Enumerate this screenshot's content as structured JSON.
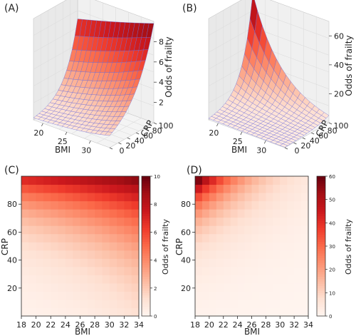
{
  "chart_data": [
    {
      "panel_label": "(A)",
      "type": "surface3d",
      "x_label": "BMI",
      "y_label": "CRP",
      "z_label": "Odds of frailty",
      "x_ticks": [
        "20",
        "25",
        "30"
      ],
      "y_ticks": [
        "0",
        "20",
        "40",
        "60",
        "80",
        "100"
      ],
      "z_ticks": [
        "2",
        "4",
        "6",
        "8"
      ],
      "xlim": [
        18,
        34
      ],
      "ylim": [
        0,
        100
      ],
      "zlim": [
        0,
        10
      ],
      "surface": {
        "z_at_bmi18_crp0": 0.2,
        "z_at_bmi34_crp0": 1.2,
        "z_at_bmi18_crp100": 7.5,
        "z_at_bmi34_crp100": 9.8
      },
      "colormap": "Reds",
      "wire_color": "#6a6ad8"
    },
    {
      "panel_label": "(B)",
      "type": "surface3d",
      "x_label": "BMI",
      "y_label": "CRP",
      "z_label": "Odds of frailty",
      "x_ticks": [
        "20",
        "25",
        "30"
      ],
      "y_ticks": [
        "0",
        "20",
        "40",
        "60",
        "80",
        "100"
      ],
      "z_ticks": [
        "20",
        "40",
        "60"
      ],
      "xlim": [
        18,
        34
      ],
      "ylim": [
        0,
        100
      ],
      "zlim": [
        0,
        70
      ],
      "surface": {
        "z_at_bmi18_crp0": 1.0,
        "z_at_bmi34_crp0": 0.3,
        "z_at_bmi18_crp100": 70,
        "z_at_bmi34_crp100": 5
      },
      "colormap": "Reds",
      "wire_color": "#6a6ad8"
    },
    {
      "panel_label": "(C)",
      "type": "heatmap",
      "x_label": "BMI",
      "y_label": "CRP",
      "colorbar_label": "Odds of frailty",
      "x_ticks": [
        "18",
        "20",
        "22",
        "24",
        "26",
        "28",
        "30",
        "32",
        "34"
      ],
      "y_ticks": [
        "20",
        "40",
        "60",
        "80"
      ],
      "colorbar_ticks": [
        "0",
        "2",
        "4",
        "6",
        "8",
        "10"
      ],
      "xlim": [
        18,
        34
      ],
      "ylim": [
        0,
        100
      ],
      "clim": [
        0,
        10
      ],
      "surface": {
        "z_at_bmi18_crp0": 0.2,
        "z_at_bmi34_crp0": 1.2,
        "z_at_bmi18_crp100": 7.5,
        "z_at_bmi34_crp100": 9.8
      },
      "colormap": "Reds"
    },
    {
      "panel_label": "(D)",
      "type": "heatmap",
      "x_label": "BMI",
      "y_label": "CRP",
      "colorbar_label": "Odds of frailty",
      "x_ticks": [
        "18",
        "20",
        "22",
        "24",
        "26",
        "28",
        "30",
        "32",
        "34"
      ],
      "y_ticks": [
        "20",
        "40",
        "60",
        "80"
      ],
      "colorbar_ticks": [
        "0",
        "10",
        "20",
        "30",
        "40",
        "50",
        "60"
      ],
      "xlim": [
        18,
        34
      ],
      "ylim": [
        0,
        100
      ],
      "clim": [
        0,
        60
      ],
      "surface": {
        "z_at_bmi18_crp0": 1.0,
        "z_at_bmi34_crp0": 0.3,
        "z_at_bmi18_crp100": 70,
        "z_at_bmi34_crp100": 5
      },
      "colormap": "Reds"
    }
  ]
}
